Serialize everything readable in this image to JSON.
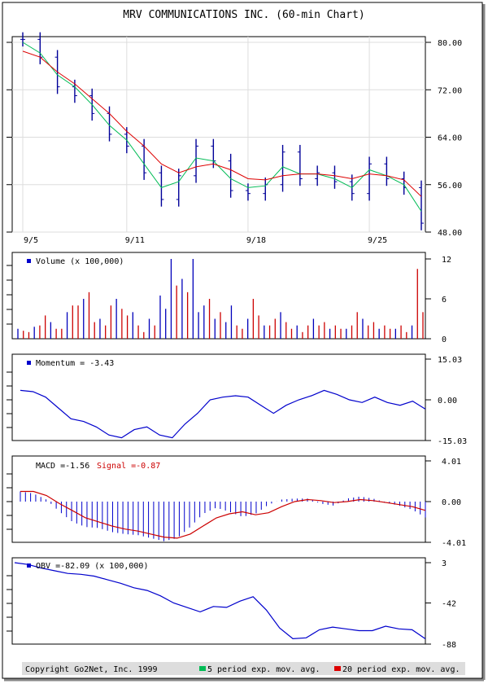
{
  "title": "MRV COMMUNICATIONS INC. (60-min Chart)",
  "colors": {
    "price": "#000099",
    "ema5": "#00bb55",
    "ema20": "#dd0000",
    "volume_up": "#0000bb",
    "volume_down": "#cc0000",
    "line": "#0000cc",
    "grid": "#dddddd",
    "footer_bg": "#dddddd"
  },
  "footer": {
    "copyright": "Copyright Go2Net, Inc. 1999",
    "legend_ema5": "5 period exp. mov. avg.",
    "legend_ema20": "20 period exp. mov. avg."
  },
  "chart_data": [
    {
      "type": "line",
      "name": "price",
      "x_tick_labels": [
        "9/5",
        "9/11",
        "9/18",
        "9/25"
      ],
      "y_tick_labels": [
        "80.00",
        "72.00",
        "64.00",
        "56.00",
        "48.00"
      ],
      "ylim": [
        48,
        80
      ],
      "grid": true,
      "x": [
        "9/5",
        "9/6",
        "9/7",
        "9/8",
        "9/9",
        "9/10",
        "9/11",
        "9/12",
        "9/13",
        "9/14",
        "9/15",
        "9/16",
        "9/17",
        "9/18",
        "9/19",
        "9/20",
        "9/21",
        "9/22",
        "9/23",
        "9/24",
        "9/25",
        "9/26",
        "9/27",
        "9/28"
      ],
      "series": [
        {
          "values": [
            80.5,
            77.5,
            72.5,
            71.0,
            68.0,
            64.5,
            62.5,
            58.0,
            53.5,
            57.5,
            62.5,
            60.0,
            55.0,
            54.5,
            56.0,
            61.5,
            57.0,
            58.0,
            56.5,
            54.5,
            59.5,
            57.0,
            55.5,
            49.5
          ]
        },
        {
          "values": [
            80.0,
            78.2,
            74.5,
            72.5,
            69.5,
            66.0,
            63.5,
            59.5,
            55.5,
            56.5,
            60.5,
            60.0,
            57.0,
            55.5,
            55.8,
            59.0,
            57.8,
            57.8,
            57.0,
            55.5,
            58.5,
            57.5,
            56.0,
            51.5
          ]
        },
        {
          "values": [
            78.5,
            77.5,
            75.0,
            73.0,
            70.5,
            68.0,
            65.0,
            62.5,
            59.5,
            58.0,
            59.0,
            59.5,
            58.5,
            57.0,
            56.8,
            57.5,
            57.8,
            57.8,
            57.5,
            57.0,
            57.8,
            57.5,
            56.8,
            54.0
          ]
        }
      ]
    },
    {
      "type": "bar",
      "name": "volume",
      "label": "Volume (x 100,000)",
      "y_tick_labels": [
        "12",
        "6",
        "0"
      ],
      "ylim": [
        0,
        12
      ],
      "values": [
        1.5,
        1.2,
        1.0,
        1.8,
        2.0,
        3.5,
        2.5,
        1.5,
        1.5,
        4.0,
        5.0,
        5.0,
        6.0,
        7.0,
        2.5,
        3.0,
        2.0,
        5.0,
        6.0,
        4.5,
        3.5,
        4.0,
        2.0,
        1.0,
        3.0,
        2.0,
        6.5,
        4.5,
        12.0,
        8.0,
        9.0,
        7.0,
        12.0,
        4.0,
        5.0,
        6.0,
        3.0,
        4.0,
        2.5,
        5.0,
        2.0,
        1.5,
        3.0,
        6.0,
        3.5,
        2.0,
        2.0,
        3.0,
        4.0,
        2.5,
        1.5,
        2.0,
        1.0,
        2.0,
        3.0,
        2.0,
        2.5,
        1.5,
        2.0,
        1.5,
        1.5,
        2.0,
        4.0,
        3.0,
        2.0,
        2.5,
        1.5,
        2.0,
        1.5,
        1.5,
        2.0,
        1.0,
        2.0,
        10.5,
        4.0
      ]
    },
    {
      "type": "line",
      "name": "momentum",
      "label": "Momentum = -3.43",
      "y_tick_labels": [
        "15.03",
        "0.00",
        "-15.03"
      ],
      "ylim": [
        -15.03,
        15.03
      ],
      "values": [
        3.5,
        3.0,
        1.0,
        -3.0,
        -7.0,
        -8.0,
        -10.0,
        -13.0,
        -14.0,
        -11.0,
        -10.0,
        -13.0,
        -14.0,
        -9.0,
        -5.0,
        0.0,
        1.0,
        1.5,
        1.0,
        -2.0,
        -5.0,
        -2.0,
        0.0,
        1.5,
        3.5,
        2.0,
        0.0,
        -1.0,
        1.0,
        -1.0,
        -2.0,
        -0.5,
        -3.43
      ]
    },
    {
      "type": "bar",
      "name": "macd",
      "label_macd": "MACD =-1.56",
      "label_signal": "Signal =-0.87",
      "y_tick_labels": [
        "4.01",
        "0.00",
        "-4.01"
      ],
      "ylim": [
        -4.01,
        4.01
      ],
      "macd": [
        1.0,
        0.8,
        0.2,
        -1.0,
        -2.0,
        -2.5,
        -2.6,
        -3.0,
        -3.2,
        -3.3,
        -3.6,
        -3.9,
        -3.6,
        -2.5,
        -1.2,
        -0.6,
        -1.0,
        -1.5,
        -1.2,
        -0.3,
        0.2,
        0.3,
        0.3,
        -0.2,
        -0.4,
        0.3,
        0.5,
        0.3,
        -0.1,
        -0.4,
        -0.8,
        -1.56
      ],
      "signal": [
        1.0,
        1.0,
        0.6,
        -0.2,
        -0.9,
        -1.6,
        -2.0,
        -2.4,
        -2.7,
        -2.9,
        -3.2,
        -3.5,
        -3.6,
        -3.2,
        -2.4,
        -1.6,
        -1.2,
        -1.0,
        -1.3,
        -1.1,
        -0.5,
        0.0,
        0.2,
        0.1,
        -0.1,
        0.0,
        0.2,
        0.1,
        -0.1,
        -0.3,
        -0.5,
        -0.87
      ]
    },
    {
      "type": "line",
      "name": "obv",
      "label": "OBV =-82.09 (x 100,000)",
      "y_tick_labels": [
        "3",
        "-42",
        "-88"
      ],
      "ylim": [
        -88,
        3
      ],
      "values": [
        3,
        1,
        -3,
        -6,
        -9,
        -10,
        -12,
        -16,
        -20,
        -25,
        -28,
        -34,
        -42,
        -47,
        -52,
        -46,
        -47,
        -40,
        -35,
        -50,
        -70,
        -82,
        -81,
        -72,
        -69,
        -71,
        -73,
        -73,
        -68,
        -71,
        -72,
        -82.09
      ]
    }
  ]
}
